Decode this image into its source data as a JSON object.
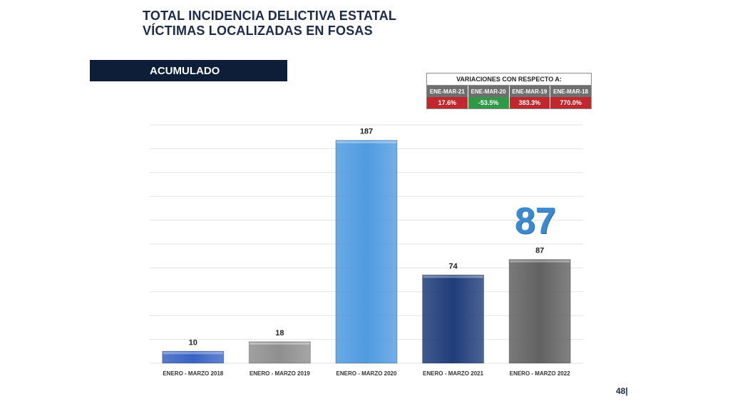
{
  "title": {
    "line1": "TOTAL INCIDENCIA DELICTIVA ESTATAL",
    "line2": "VÍCTIMAS LOCALIZADAS EN FOSAS"
  },
  "section_label": "ACUMULADO",
  "variations": {
    "header": "VARIACIONES CON RESPECTO A:",
    "items": [
      {
        "label": "ENE-MAR-21",
        "value": "17.6%",
        "color": "#c0282d"
      },
      {
        "label": "ENE-MAR-20",
        "value": "-53.5%",
        "color": "#2e9a46"
      },
      {
        "label": "ENE-MAR-19",
        "value": "383.3%",
        "color": "#c0282d"
      },
      {
        "label": "ENE-MAR-18",
        "value": "770.0%",
        "color": "#c0282d"
      }
    ]
  },
  "highlight_value": "87",
  "page_number": "48|",
  "colors": {
    "title": "#1b2a4a",
    "highlight": "#3b8ad1",
    "grid": "#e3e3e3"
  },
  "chart_data": {
    "type": "bar",
    "categories": [
      "ENERO - MARZO 2018",
      "ENERO - MARZO 2019",
      "ENERO - MARZO 2020",
      "ENERO - MARZO 2021",
      "ENERO - MARZO 2022"
    ],
    "values": [
      10,
      18,
      187,
      74,
      87
    ],
    "data_labels": [
      "10",
      "18",
      "187",
      "74",
      "87"
    ],
    "bar_colors": [
      "#3a63c4",
      "#8f8f8f",
      "#4f9be0",
      "#1f3d7a",
      "#626262"
    ],
    "ylim": [
      0,
      200
    ],
    "grid": true,
    "legend": "none"
  }
}
